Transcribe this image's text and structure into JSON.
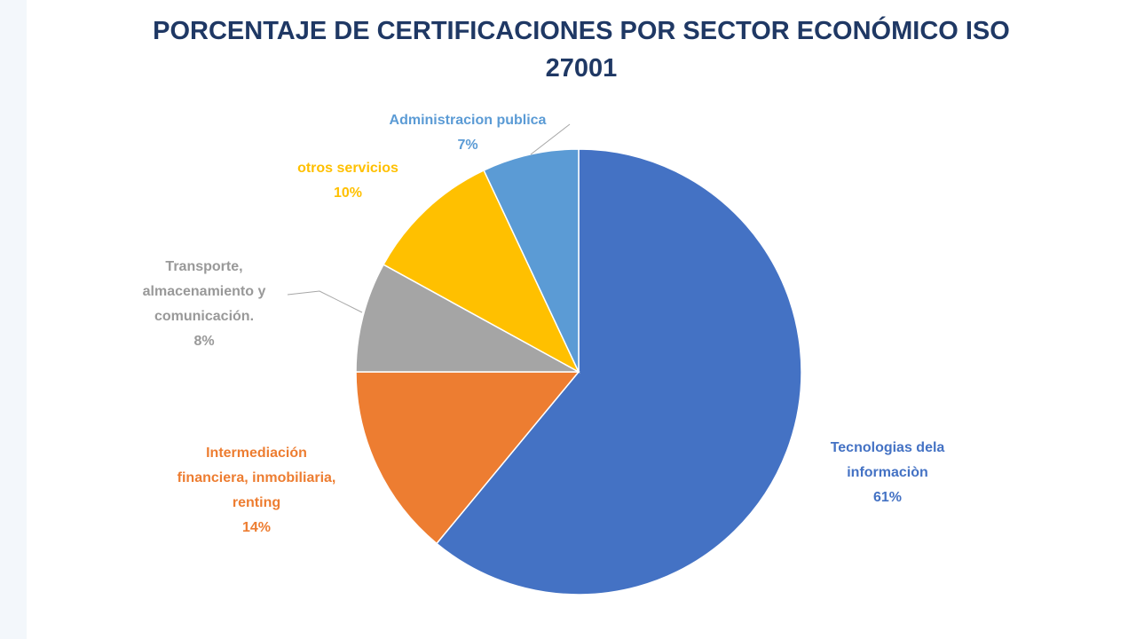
{
  "chart_data": {
    "type": "pie",
    "title_lines": [
      "PORCENTAJE  DE CERTIFICACIONES POR SECTOR ECONÓMICO ISO",
      "27001"
    ],
    "slices": [
      {
        "label_lines": [
          "Tecnologias  dela",
          "informaciòn"
        ],
        "value": 61,
        "value_label": "61%",
        "color": "#4472c4",
        "label_color": "#4472c4"
      },
      {
        "label_lines": [
          "Intermediación",
          "financiera,  inmobiliaria,",
          "renting"
        ],
        "value": 14,
        "value_label": "14%",
        "color": "#ed7d31",
        "label_color": "#ed7d31"
      },
      {
        "label_lines": [
          "Transporte,",
          "almacenamiento  y",
          "comunicación."
        ],
        "value": 8,
        "value_label": "8%",
        "color": "#a5a5a5",
        "label_color": "#999999"
      },
      {
        "label_lines": [
          "otros servicios"
        ],
        "value": 10,
        "value_label": "10%",
        "color": "#ffc000",
        "label_color": "#ffc000"
      },
      {
        "label_lines": [
          "Administracion  publica"
        ],
        "value": 7,
        "value_label": "7%",
        "color": "#5b9bd5",
        "label_color": "#5b9bd5"
      }
    ]
  }
}
